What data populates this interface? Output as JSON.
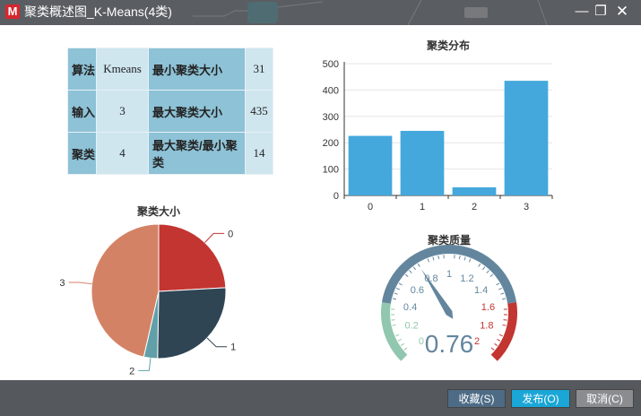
{
  "window": {
    "title": "聚类概述图_K-Means(4类)",
    "logo_text": "M",
    "minimize_glyph": "—",
    "maximize_glyph": "❐",
    "close_glyph": "✕"
  },
  "stats_table": {
    "rows": [
      {
        "label1": "算法",
        "value1": "Kmeans",
        "label2": "最小聚类大小",
        "value2": "31"
      },
      {
        "label1": "输入",
        "value1": "3",
        "label2": "最大聚类大小",
        "value2": "435"
      },
      {
        "label1": "聚类",
        "value1": "4",
        "label2": "最大聚类/最小聚类",
        "value2": "14"
      }
    ]
  },
  "chart_data": [
    {
      "type": "bar",
      "title": "聚类分布",
      "categories": [
        "0",
        "1",
        "2",
        "3"
      ],
      "values": [
        226,
        245,
        31,
        435
      ],
      "ylim": [
        0,
        500
      ],
      "yticks": [
        "0",
        "100",
        "200",
        "300",
        "400",
        "500"
      ],
      "color": "#44a8dc"
    },
    {
      "type": "pie",
      "title": "聚类大小",
      "labels": [
        "0",
        "1",
        "2",
        "3"
      ],
      "values": [
        226,
        245,
        31,
        435
      ],
      "colors": [
        "#c23531",
        "#2f4554",
        "#61a0a8",
        "#d48265"
      ]
    },
    {
      "type": "gauge",
      "title": "聚类质量",
      "value": 0.76,
      "value_text": "0.76",
      "min": 0,
      "max": 2,
      "tick_labels": [
        "0",
        "0.2",
        "0.4",
        "0.6",
        "0.8",
        "1",
        "1.2",
        "1.4",
        "1.6",
        "1.8",
        "2"
      ],
      "band_colors": [
        "#91c7ae",
        "#63869e",
        "#c23531"
      ]
    }
  ],
  "footer": {
    "collect_label": "收藏(S)",
    "publish_label": "发布(O)",
    "cancel_label": "取消(C)"
  },
  "colors": {
    "titlebar": "#5a5d61",
    "table_header": "#8ec2d6",
    "table_value": "#cfe6ef",
    "collect_button": "#4d6b85",
    "publish_button": "#1aa6d6",
    "cancel_button": "#8a8c8f"
  }
}
